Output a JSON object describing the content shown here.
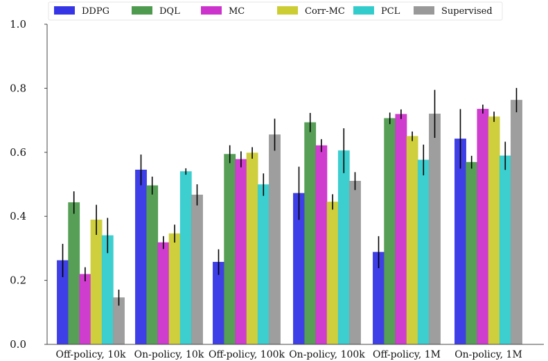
{
  "chart_data": {
    "type": "bar",
    "title": "",
    "xlabel": "",
    "ylabel": "",
    "ylim": [
      0,
      1.0
    ],
    "yticks": [
      "0.0",
      "0.2",
      "0.4",
      "0.6",
      "0.8",
      "1.0"
    ],
    "categories": [
      "Off-policy, 10k",
      "On-policy, 10k",
      "Off-policy, 100k",
      "On-policy, 100k",
      "Off-policy, 1M",
      "On-policy, 1M"
    ],
    "legend_position": "top",
    "series": [
      {
        "name": "DDPG",
        "color": "#3535e6",
        "values": [
          0.262,
          0.545,
          0.257,
          0.472,
          0.288,
          0.642
        ],
        "errors": [
          0.052,
          0.048,
          0.04,
          0.083,
          0.05,
          0.093
        ]
      },
      {
        "name": "DQL",
        "color": "#4e9a4e",
        "values": [
          0.443,
          0.496,
          0.594,
          0.693,
          0.706,
          0.569
        ],
        "errors": [
          0.035,
          0.028,
          0.028,
          0.03,
          0.018,
          0.02
        ]
      },
      {
        "name": "MC",
        "color": "#cc33cc",
        "values": [
          0.219,
          0.318,
          0.578,
          0.621,
          0.719,
          0.735
        ],
        "errors": [
          0.022,
          0.02,
          0.025,
          0.02,
          0.015,
          0.014
        ]
      },
      {
        "name": "Corr-MC",
        "color": "#cccc33",
        "values": [
          0.389,
          0.346,
          0.598,
          0.445,
          0.65,
          0.711
        ],
        "errors": [
          0.047,
          0.028,
          0.018,
          0.024,
          0.015,
          0.016
        ]
      },
      {
        "name": "PCL",
        "color": "#33cccc",
        "values": [
          0.34,
          0.54,
          0.499,
          0.605,
          0.576,
          0.589
        ],
        "errors": [
          0.055,
          0.01,
          0.035,
          0.07,
          0.048,
          0.044
        ]
      },
      {
        "name": "Supervised",
        "color": "#999999",
        "values": [
          0.146,
          0.467,
          0.655,
          0.51,
          0.72,
          0.763
        ],
        "errors": [
          0.025,
          0.033,
          0.05,
          0.028,
          0.075,
          0.038
        ]
      }
    ]
  }
}
